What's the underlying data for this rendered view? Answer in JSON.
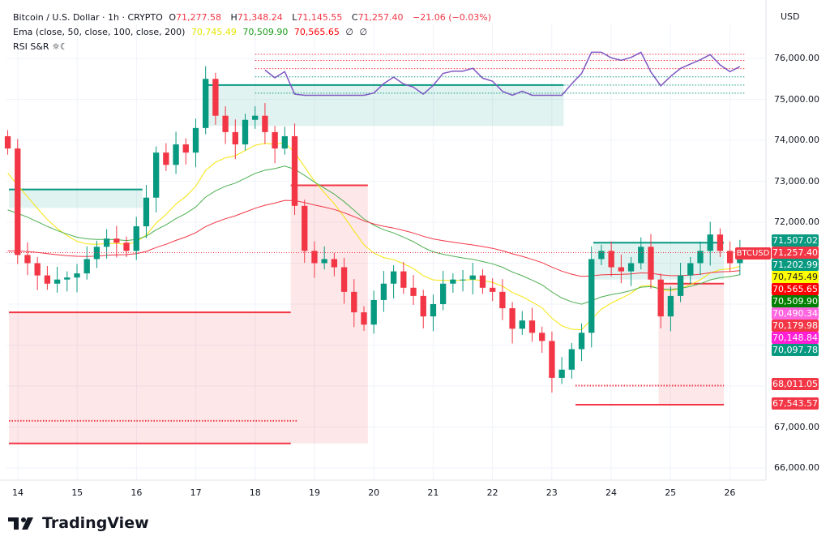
{
  "header": {
    "symbol_title": "Bitcoin / U.S. Dollar · 1h · CRYPTO",
    "open_label": "O",
    "open": "71,277.58",
    "high_label": "H",
    "high": "71,348.24",
    "low_label": "L",
    "low": "71,145.55",
    "close_label": "C",
    "close": "71,257.40",
    "change": "−21.06 (−0.03%)",
    "ema_title": "Ema (close, 50, close, 100, close, 200)",
    "ema_values": [
      "70,745.49",
      "70,509.90",
      "70,565.65"
    ],
    "ema_na": [
      "∅",
      "∅"
    ],
    "rsi_title": "RSI S&R ☼☾"
  },
  "currency": "USD",
  "symbol_badge": "BTCUSD",
  "price_badges": [
    {
      "value": "71,507.02",
      "color": "#089981",
      "text": "#ffffff"
    },
    {
      "value": "71,257.40",
      "color": "#f23645",
      "text": "#ffffff"
    },
    {
      "value": "71,202.99",
      "color": "#089981",
      "text": "#ffffff"
    },
    {
      "value": "70,745.49",
      "color": "#ffff00",
      "text": "#131722"
    },
    {
      "value": "70,565.65",
      "color": "#ff0000",
      "text": "#ffffff"
    },
    {
      "value": "70,509.90",
      "color": "#008000",
      "text": "#ffffff"
    },
    {
      "value": "70,490.34",
      "color": "#ff66e0",
      "text": "#ffffff"
    },
    {
      "value": "70,179.98",
      "color": "#f23645",
      "text": "#ffffff"
    },
    {
      "value": "70,148.84",
      "color": "#ff1fd6",
      "text": "#ffffff"
    },
    {
      "value": "70,097.78",
      "color": "#089981",
      "text": "#ffffff"
    },
    {
      "value": "68,011.05",
      "color": "#f23645",
      "text": "#ffffff"
    },
    {
      "value": "67,543.57",
      "color": "#f23645",
      "text": "#ffffff"
    }
  ],
  "price_ticks": [
    "76,000.00",
    "75,000.00",
    "74,000.00",
    "73,000.00",
    "72,000.00",
    "67,000.00",
    "66,000.00"
  ],
  "time_ticks": [
    "14",
    "15",
    "16",
    "17",
    "18",
    "19",
    "20",
    "21",
    "22",
    "23",
    "24",
    "25",
    "26"
  ],
  "brand": "TradingView",
  "colors": {
    "up": "#089981",
    "down": "#f23645",
    "ema50": "#f5e50a",
    "ema100": "#4caf50",
    "ema200": "#f23645",
    "rsi": "#7e57c2"
  },
  "chart_data": {
    "type": "candlestick",
    "symbol": "BTCUSD",
    "interval": "1h",
    "ylim": [
      65600,
      76500
    ],
    "x_days": [
      13.83,
      26.17
    ],
    "closes": [
      73800,
      71200,
      71000,
      70700,
      70500,
      70600,
      70650,
      70750,
      71100,
      71400,
      71600,
      71500,
      71300,
      71900,
      72600,
      73700,
      73400,
      73900,
      73700,
      74300,
      75500,
      74600,
      74200,
      73900,
      74500,
      74600,
      74200,
      73800,
      74100,
      72400,
      71300,
      71000,
      71100,
      70900,
      70300,
      69800,
      69500,
      70100,
      70500,
      70800,
      70400,
      70200,
      69700,
      70000,
      70500,
      70600,
      70600,
      70700,
      70400,
      70300,
      69900,
      69400,
      69600,
      69300,
      69100,
      68200,
      68400,
      68900,
      69300,
      71100,
      71300,
      70900,
      70800,
      71000,
      71400,
      70600,
      69700,
      70200,
      70700,
      71000,
      71300,
      71700,
      71300,
      71000,
      71257.4
    ],
    "zones": [
      {
        "from": 13.85,
        "to": 16.1,
        "top": 72800,
        "bottom": 72350,
        "kind": "support"
      },
      {
        "from": 17.2,
        "to": 23.2,
        "top": 75350,
        "bottom": 74350,
        "kind": "support"
      },
      {
        "from": 23.7,
        "to": 25.9,
        "top": 71500,
        "bottom": 70600,
        "kind": "support"
      },
      {
        "from": 13.85,
        "to": 18.6,
        "top": 69800,
        "bottom": 66600,
        "kind": "resistance"
      },
      {
        "from": 18.6,
        "to": 19.9,
        "top": 72900,
        "bottom": 66600,
        "kind": "resistance"
      },
      {
        "from": 24.8,
        "to": 25.9,
        "top": 70500,
        "bottom": 67550,
        "kind": "resistance"
      }
    ],
    "levels": [
      {
        "from": 13.85,
        "to": 18.7,
        "price": 67150,
        "dotted": true
      },
      {
        "from": 13.85,
        "to": 18.6,
        "price": 66600,
        "dotted": false
      },
      {
        "from": 23.4,
        "to": 25.9,
        "price": 68011.05,
        "dotted": true
      },
      {
        "from": 23.4,
        "to": 25.9,
        "price": 67543.57,
        "dotted": false
      }
    ]
  }
}
